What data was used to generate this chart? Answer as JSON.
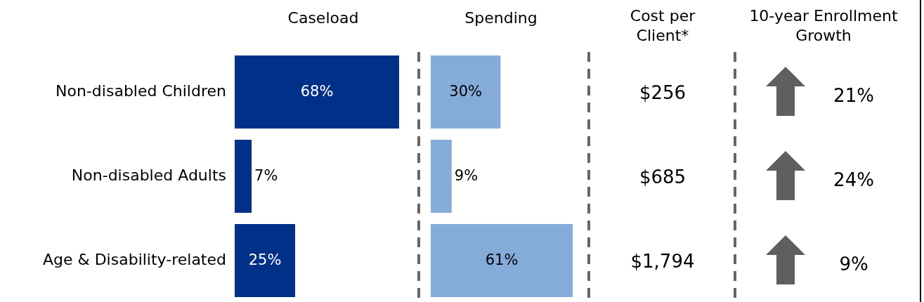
{
  "chart_data": [
    {
      "type": "bar",
      "orientation": "horizontal",
      "title": "Caseload",
      "categories": [
        "Non-disabled Children",
        "Non-disabled Adults",
        "Age & Disability-related"
      ],
      "values": [
        68,
        7,
        25
      ],
      "value_labels": [
        "68%",
        "7%",
        "25%"
      ],
      "color": "#003087"
    },
    {
      "type": "bar",
      "orientation": "horizontal",
      "title": "Spending",
      "values": [
        30,
        9,
        61
      ],
      "value_labels": [
        "30%",
        "9%",
        "61%"
      ],
      "color": "#85abd8"
    },
    {
      "type": "other",
      "title": "Cost per Client*",
      "values": [
        256,
        685,
        1794
      ],
      "value_labels": [
        "$256",
        "$685",
        "$1,794"
      ]
    },
    {
      "type": "other",
      "title": "10-year Enrollment Growth",
      "values": [
        21,
        24,
        9
      ],
      "value_labels": [
        "21%",
        "24%",
        "9%"
      ]
    }
  ]
}
